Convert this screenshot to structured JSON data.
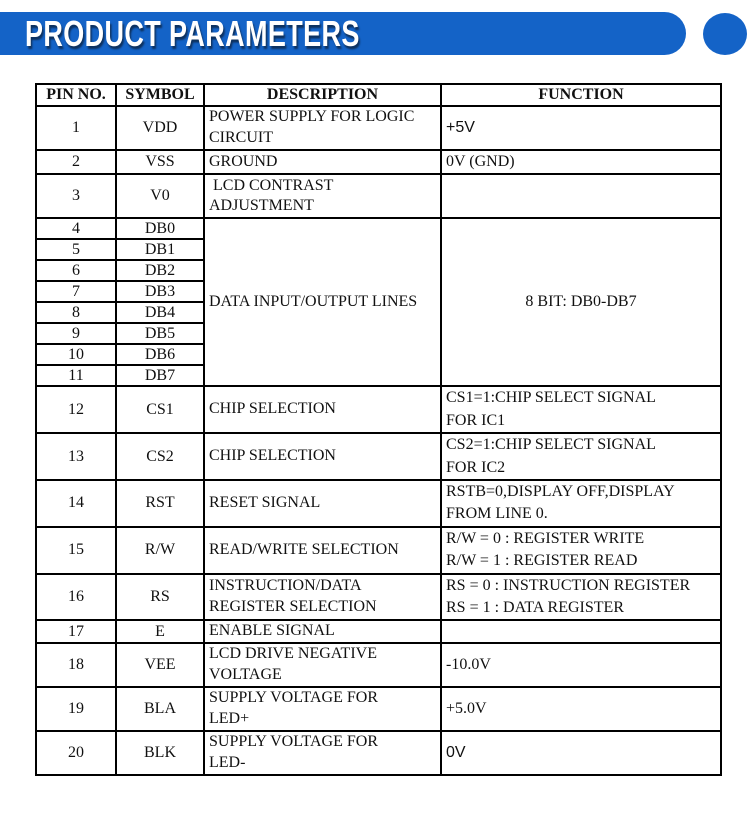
{
  "header": {
    "title": "PRODUCT PARAMETERS",
    "banner_color": "#1463c7"
  },
  "table": {
    "headers": {
      "pin": "PIN NO.",
      "symbol": "SYMBOL",
      "description": "DESCRIPTION",
      "function": "FUNCTION"
    },
    "rows": [
      {
        "pin": "1",
        "symbol": "VDD",
        "description": "POWER SUPPLY FOR LOGIC\nCIRCUIT",
        "function": "+5V"
      },
      {
        "pin": "2",
        "symbol": "VSS",
        "description": "GROUND",
        "function": "0V (GND)"
      },
      {
        "pin": "3",
        "symbol": "V0",
        "description": " LCD CONTRAST\nADJUSTMENT",
        "function": ""
      },
      {
        "pin": "4",
        "symbol": "DB0"
      },
      {
        "pin": "5",
        "symbol": "DB1"
      },
      {
        "pin": "6",
        "symbol": "DB2"
      },
      {
        "pin": "7",
        "symbol": "DB3"
      },
      {
        "pin": "8",
        "symbol": "DB4"
      },
      {
        "pin": "9",
        "symbol": "DB5"
      },
      {
        "pin": "10",
        "symbol": "DB6"
      },
      {
        "pin": "11",
        "symbol": "DB7"
      },
      {
        "pin": "12",
        "symbol": "CS1",
        "description": "CHIP SELECTION",
        "function": "CS1=1:CHIP SELECT SIGNAL\nFOR IC1"
      },
      {
        "pin": "13",
        "symbol": "CS2",
        "description": "CHIP SELECTION",
        "function": "CS2=1:CHIP SELECT SIGNAL\nFOR IC2"
      },
      {
        "pin": "14",
        "symbol": "RST",
        "description": "RESET SIGNAL",
        "function": "RSTB=0,DISPLAY OFF,DISPLAY\nFROM LINE 0."
      },
      {
        "pin": "15",
        "symbol": "R/W",
        "description": "READ/WRITE SELECTION",
        "function": "R/W = 0 : REGISTER WRITE\nR/W = 1 : REGISTER READ"
      },
      {
        "pin": "16",
        "symbol": "RS",
        "description": "INSTRUCTION/DATA\nREGISTER SELECTION",
        "function": "RS = 0 : INSTRUCTION REGISTER\nRS = 1 : DATA REGISTER"
      },
      {
        "pin": "17",
        "symbol": "E",
        "description": "ENABLE SIGNAL",
        "function": ""
      },
      {
        "pin": "18",
        "symbol": "VEE",
        "description": "LCD DRIVE NEGATIVE\nVOLTAGE",
        "function": "-10.0V"
      },
      {
        "pin": "19",
        "symbol": "BLA",
        "description": "SUPPLY VOLTAGE FOR\nLED+",
        "function": "+5.0V"
      },
      {
        "pin": "20",
        "symbol": "BLK",
        "description": "SUPPLY VOLTAGE FOR\nLED-",
        "function": "0V"
      }
    ],
    "data_lines_group": {
      "description": "DATA INPUT/OUTPUT LINES",
      "function": "8 BIT: DB0-DB7"
    }
  }
}
